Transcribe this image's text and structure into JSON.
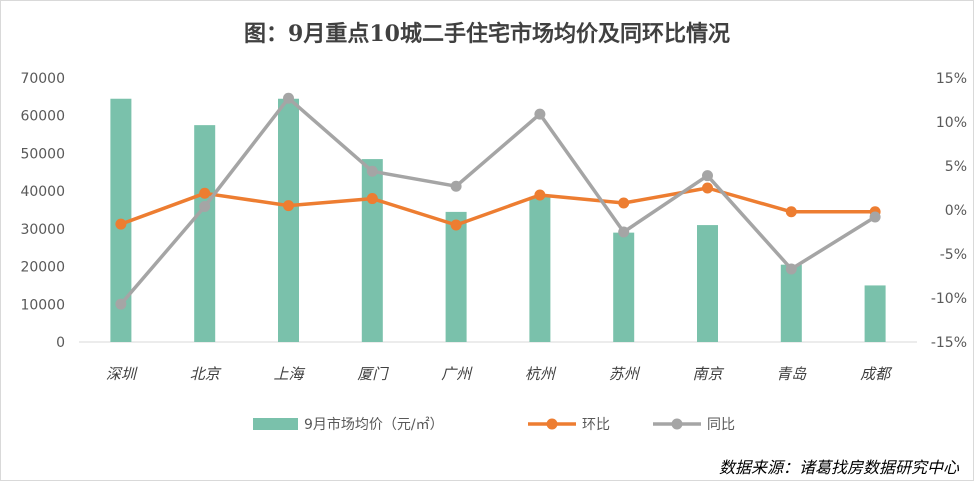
{
  "chart_data": {
    "type": "bar",
    "title": "图：9月重点10城二手住宅市场均价及同环比情况",
    "categories": [
      "深圳",
      "北京",
      "上海",
      "厦门",
      "广州",
      "杭州",
      "苏州",
      "南京",
      "青岛",
      "成都"
    ],
    "left_axis": {
      "ticks": [
        "70000",
        "60000",
        "50000",
        "40000",
        "30000",
        "20000",
        "10000",
        "0"
      ],
      "ylim": [
        0,
        70000
      ]
    },
    "right_axis": {
      "ticks": [
        "15%",
        "10%",
        "5%",
        "0%",
        "-5%",
        "-10%",
        "-15%"
      ],
      "ylim": [
        -15,
        15
      ]
    },
    "series": [
      {
        "name": "9月市场均价（元/㎡）",
        "type": "bar",
        "axis": "left",
        "color": "#7ac1ab",
        "values": [
          64500,
          57500,
          64500,
          48500,
          34500,
          38500,
          29000,
          31000,
          20500,
          15000
        ]
      },
      {
        "name": "环比",
        "type": "line",
        "axis": "right",
        "color": "#ed7d31",
        "values": [
          -1.6,
          1.9,
          0.5,
          1.3,
          -1.7,
          1.7,
          0.8,
          2.5,
          -0.2,
          -0.2
        ]
      },
      {
        "name": "同比",
        "type": "line",
        "axis": "right",
        "color": "#a5a5a5",
        "values": [
          -10.7,
          0.4,
          12.7,
          4.4,
          2.7,
          10.9,
          -2.5,
          3.9,
          -6.7,
          -0.8
        ]
      }
    ],
    "legend_position": "bottom",
    "grid": false
  },
  "source_note": "数据来源：诸葛找房数据研究中心"
}
